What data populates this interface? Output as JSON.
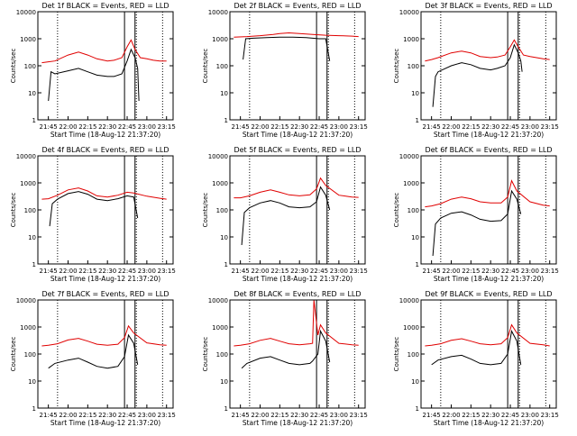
{
  "figure": {
    "series_colors": {
      "events": "#000000",
      "lld": "#e00000"
    }
  },
  "chart_data": [
    {
      "type": "line",
      "title": "Det 1f BLACK = Events, RED = LLD",
      "xlabel": "Start Time (18-Aug-12 21:37:20)",
      "ylabel": "Counts/sec",
      "y_scale": "log",
      "ylim": [
        1,
        10000
      ],
      "y_ticks": [
        "1",
        "10",
        "100",
        "1000",
        "10000"
      ],
      "xlim": [
        "21:37",
        "23:20"
      ],
      "x_ticks": [
        "21:45",
        "22:00",
        "22:15",
        "22:30",
        "22:45",
        "23:00",
        "23:15"
      ],
      "vertical_markers": {
        "dotted": [
          "21:52",
          "22:52",
          "23:12"
        ],
        "solid": [
          "22:43",
          "22:51"
        ]
      },
      "series": [
        {
          "key": "events",
          "x": [
            "21:45",
            "21:47",
            "21:50",
            "22:00",
            "22:08",
            "22:15",
            "22:22",
            "22:30",
            "22:35",
            "22:41",
            "22:45",
            "22:48",
            "22:51",
            "22:53",
            "22:54"
          ],
          "y": [
            5,
            60,
            50,
            65,
            80,
            60,
            45,
            40,
            40,
            50,
            150,
            400,
            200,
            80,
            5
          ]
        },
        {
          "key": "lld",
          "x": [
            "21:40",
            "21:45",
            "21:50",
            "22:00",
            "22:08",
            "22:15",
            "22:22",
            "22:30",
            "22:35",
            "22:41",
            "22:45",
            "22:48",
            "22:51",
            "22:55",
            "23:00",
            "23:05",
            "23:10",
            "23:15"
          ],
          "y": [
            130,
            140,
            150,
            250,
            320,
            250,
            180,
            150,
            160,
            200,
            500,
            900,
            400,
            200,
            180,
            160,
            150,
            150
          ]
        }
      ]
    },
    {
      "type": "line",
      "title": "Det 2f BLACK = Events, RED = LLD",
      "xlabel": "Start Time (18-Aug-12 21:37:20)",
      "ylabel": "Counts/sec",
      "y_scale": "log",
      "ylim": [
        1,
        10000
      ],
      "y_ticks": [
        "1",
        "10",
        "100",
        "1000",
        "10000"
      ],
      "xlim": [
        "21:37",
        "23:20"
      ],
      "x_ticks": [
        "21:45",
        "22:00",
        "22:15",
        "22:30",
        "22:45",
        "23:00",
        "23:15"
      ],
      "vertical_markers": {
        "dotted": [
          "21:52",
          "22:52",
          "23:12"
        ],
        "solid": [
          "22:43",
          "22:51"
        ]
      },
      "series": [
        {
          "key": "events",
          "x": [
            "21:47",
            "21:49",
            "21:55",
            "22:05",
            "22:15",
            "22:25",
            "22:35",
            "22:45",
            "22:50",
            "22:53"
          ],
          "y": [
            170,
            1000,
            1050,
            1100,
            1150,
            1150,
            1100,
            1000,
            1000,
            150
          ]
        },
        {
          "key": "lld",
          "x": [
            "21:40",
            "21:50",
            "22:00",
            "22:10",
            "22:15",
            "22:22",
            "22:30",
            "22:40",
            "22:50",
            "23:00",
            "23:10",
            "23:15"
          ],
          "y": [
            1150,
            1200,
            1300,
            1450,
            1550,
            1650,
            1550,
            1450,
            1350,
            1300,
            1250,
            1200
          ]
        }
      ]
    },
    {
      "type": "line",
      "title": "Det 3f BLACK = Events, RED = LLD",
      "xlabel": "Start Time (18-Aug-12 21:37:20)",
      "ylabel": "Counts/sec",
      "y_scale": "log",
      "ylim": [
        1,
        10000
      ],
      "y_ticks": [
        "1",
        "10",
        "100",
        "1000",
        "10000"
      ],
      "xlim": [
        "21:37",
        "23:20"
      ],
      "x_ticks": [
        "21:45",
        "22:00",
        "22:15",
        "22:30",
        "22:45",
        "23:00",
        "23:15"
      ],
      "vertical_markers": {
        "dotted": [
          "21:52",
          "22:52",
          "23:12"
        ],
        "solid": [
          "22:43",
          "22:51"
        ]
      },
      "series": [
        {
          "key": "events",
          "x": [
            "21:46",
            "21:48",
            "21:50",
            "22:00",
            "22:08",
            "22:15",
            "22:22",
            "22:30",
            "22:35",
            "22:41",
            "22:45",
            "22:48",
            "22:51",
            "22:53",
            "22:54"
          ],
          "y": [
            3,
            40,
            60,
            100,
            130,
            110,
            80,
            70,
            80,
            100,
            200,
            600,
            300,
            150,
            60
          ]
        },
        {
          "key": "lld",
          "x": [
            "21:40",
            "21:45",
            "21:50",
            "22:00",
            "22:08",
            "22:15",
            "22:22",
            "22:30",
            "22:35",
            "22:41",
            "22:45",
            "22:48",
            "22:51",
            "22:55",
            "23:00",
            "23:05",
            "23:10",
            "23:15"
          ],
          "y": [
            150,
            170,
            200,
            300,
            350,
            300,
            220,
            200,
            210,
            250,
            500,
            900,
            500,
            250,
            220,
            200,
            180,
            170
          ]
        }
      ]
    },
    {
      "type": "line",
      "title": "Det 4f BLACK = Events, RED = LLD",
      "xlabel": "Start Time (18-Aug-12 21:37:20)",
      "ylabel": "Counts/sec",
      "y_scale": "log",
      "ylim": [
        1,
        10000
      ],
      "y_ticks": [
        "1",
        "10",
        "100",
        "1000",
        "10000"
      ],
      "xlim": [
        "21:37",
        "23:20"
      ],
      "x_ticks": [
        "21:45",
        "22:00",
        "22:15",
        "22:30",
        "22:45",
        "23:00",
        "23:15"
      ],
      "vertical_markers": {
        "dotted": [
          "21:52",
          "22:52",
          "23:12"
        ],
        "solid": [
          "22:43",
          "22:51"
        ]
      },
      "series": [
        {
          "key": "events",
          "x": [
            "21:46",
            "21:48",
            "21:52",
            "22:00",
            "22:08",
            "22:15",
            "22:22",
            "22:30",
            "22:38",
            "22:45",
            "22:50",
            "22:53"
          ],
          "y": [
            25,
            170,
            250,
            400,
            480,
            380,
            250,
            220,
            260,
            330,
            300,
            50
          ]
        },
        {
          "key": "lld",
          "x": [
            "21:40",
            "21:45",
            "21:52",
            "22:00",
            "22:08",
            "22:15",
            "22:22",
            "22:30",
            "22:38",
            "22:45",
            "22:50",
            "23:00",
            "23:10",
            "23:15"
          ],
          "y": [
            250,
            260,
            350,
            550,
            650,
            500,
            330,
            300,
            350,
            450,
            420,
            320,
            270,
            250
          ]
        }
      ]
    },
    {
      "type": "line",
      "title": "Det 5f BLACK = Events, RED = LLD",
      "xlabel": "Start Time (18-Aug-12 21:37:20)",
      "ylabel": "Counts/sec",
      "y_scale": "log",
      "ylim": [
        1,
        10000
      ],
      "y_ticks": [
        "1",
        "10",
        "100",
        "1000",
        "10000"
      ],
      "xlim": [
        "21:37",
        "23:20"
      ],
      "x_ticks": [
        "21:45",
        "22:00",
        "22:15",
        "22:30",
        "22:45",
        "23:00",
        "23:15"
      ],
      "vertical_markers": {
        "dotted": [
          "21:52",
          "22:52",
          "23:12"
        ],
        "solid": [
          "22:43",
          "22:51"
        ]
      },
      "series": [
        {
          "key": "events",
          "x": [
            "21:46",
            "21:48",
            "21:52",
            "22:00",
            "22:08",
            "22:15",
            "22:22",
            "22:30",
            "22:38",
            "22:43",
            "22:46",
            "22:50",
            "22:53"
          ],
          "y": [
            5,
            80,
            120,
            180,
            220,
            180,
            130,
            120,
            130,
            200,
            700,
            350,
            100
          ]
        },
        {
          "key": "lld",
          "x": [
            "21:40",
            "21:45",
            "21:52",
            "22:00",
            "22:08",
            "22:15",
            "22:22",
            "22:30",
            "22:38",
            "22:43",
            "22:46",
            "22:50",
            "23:00",
            "23:10",
            "23:15"
          ],
          "y": [
            280,
            280,
            330,
            450,
            550,
            450,
            360,
            330,
            360,
            600,
            1500,
            800,
            350,
            300,
            290
          ]
        }
      ]
    },
    {
      "type": "line",
      "title": "Det 6f BLACK = Events, RED = LLD",
      "xlabel": "Start Time (18-Aug-12 21:37:20)",
      "ylabel": "Counts/sec",
      "y_scale": "log",
      "ylim": [
        1,
        10000
      ],
      "y_ticks": [
        "1",
        "10",
        "100",
        "1000",
        "10000"
      ],
      "xlim": [
        "21:37",
        "23:20"
      ],
      "x_ticks": [
        "21:45",
        "22:00",
        "22:15",
        "22:30",
        "22:45",
        "23:00",
        "23:15"
      ],
      "vertical_markers": {
        "dotted": [
          "21:52",
          "22:52",
          "23:12"
        ],
        "solid": [
          "22:43",
          "22:51"
        ]
      },
      "series": [
        {
          "key": "events",
          "x": [
            "21:46",
            "21:48",
            "21:52",
            "22:00",
            "22:08",
            "22:15",
            "22:22",
            "22:30",
            "22:38",
            "22:43",
            "22:46",
            "22:50",
            "22:53"
          ],
          "y": [
            2,
            30,
            50,
            75,
            85,
            65,
            45,
            38,
            40,
            70,
            500,
            250,
            70
          ]
        },
        {
          "key": "lld",
          "x": [
            "21:40",
            "21:45",
            "21:52",
            "22:00",
            "22:08",
            "22:15",
            "22:22",
            "22:30",
            "22:38",
            "22:43",
            "22:46",
            "22:50",
            "23:00",
            "23:10",
            "23:15"
          ],
          "y": [
            130,
            140,
            170,
            250,
            300,
            260,
            200,
            180,
            180,
            300,
            1200,
            500,
            200,
            150,
            140
          ]
        }
      ]
    },
    {
      "type": "line",
      "title": "Det 7f BLACK = Events, RED = LLD",
      "xlabel": "Start Time (18-Aug-12 21:37:20)",
      "ylabel": "Counts/sec",
      "y_scale": "log",
      "ylim": [
        1,
        10000
      ],
      "y_ticks": [
        "1",
        "10",
        "100",
        "1000",
        "10000"
      ],
      "xlim": [
        "21:37",
        "23:20"
      ],
      "x_ticks": [
        "21:45",
        "22:00",
        "22:15",
        "22:30",
        "22:45",
        "23:00",
        "23:15"
      ],
      "vertical_markers": {
        "dotted": [
          "21:52",
          "22:52",
          "23:12"
        ],
        "solid": [
          "22:43",
          "22:51"
        ]
      },
      "series": [
        {
          "key": "events",
          "x": [
            "21:45",
            "21:50",
            "22:00",
            "22:08",
            "22:15",
            "22:22",
            "22:30",
            "22:38",
            "22:43",
            "22:46",
            "22:50",
            "22:53"
          ],
          "y": [
            30,
            45,
            60,
            70,
            50,
            35,
            30,
            35,
            80,
            500,
            250,
            40
          ]
        },
        {
          "key": "lld",
          "x": [
            "21:40",
            "21:45",
            "21:52",
            "22:00",
            "22:08",
            "22:15",
            "22:22",
            "22:30",
            "22:38",
            "22:43",
            "22:46",
            "22:50",
            "23:00",
            "23:10",
            "23:15"
          ],
          "y": [
            200,
            210,
            240,
            330,
            380,
            300,
            230,
            210,
            230,
            400,
            1100,
            600,
            260,
            220,
            210
          ]
        }
      ]
    },
    {
      "type": "line",
      "title": "Det 8f BLACK = Events, RED = LLD",
      "xlabel": "Start Time (18-Aug-12 21:37:20)",
      "ylabel": "Counts/sec",
      "y_scale": "log",
      "ylim": [
        1,
        10000
      ],
      "y_ticks": [
        "1",
        "10",
        "100",
        "1000",
        "10000"
      ],
      "xlim": [
        "21:37",
        "23:20"
      ],
      "x_ticks": [
        "21:45",
        "22:00",
        "22:15",
        "22:30",
        "22:45",
        "23:00",
        "23:15"
      ],
      "vertical_markers": {
        "dotted": [
          "21:52",
          "22:52",
          "23:12"
        ],
        "solid": [
          "22:43",
          "22:51"
        ]
      },
      "series": [
        {
          "key": "events",
          "x": [
            "21:46",
            "21:50",
            "22:00",
            "22:08",
            "22:15",
            "22:22",
            "22:30",
            "22:38",
            "22:40",
            "22:44",
            "22:46",
            "22:50",
            "22:53"
          ],
          "y": [
            30,
            45,
            70,
            80,
            60,
            45,
            40,
            45,
            55,
            100,
            700,
            300,
            50
          ]
        },
        {
          "key": "lld",
          "x": [
            "21:40",
            "21:45",
            "21:52",
            "22:00",
            "22:08",
            "22:15",
            "22:22",
            "22:30",
            "22:38",
            "22:40",
            "22:41",
            "22:44",
            "22:46",
            "22:50",
            "23:00",
            "23:10",
            "23:15"
          ],
          "y": [
            200,
            210,
            240,
            320,
            380,
            300,
            240,
            220,
            240,
            250,
            10000,
            500,
            1200,
            600,
            250,
            220,
            210
          ]
        }
      ]
    },
    {
      "type": "line",
      "title": "Det 9f BLACK = Events, RED = LLD",
      "xlabel": "Start Time (18-Aug-12 21:37:20)",
      "ylabel": "Counts/sec",
      "y_scale": "log",
      "ylim": [
        1,
        10000
      ],
      "y_ticks": [
        "1",
        "10",
        "100",
        "1000",
        "10000"
      ],
      "xlim": [
        "21:37",
        "23:20"
      ],
      "x_ticks": [
        "21:45",
        "22:00",
        "22:15",
        "22:30",
        "22:45",
        "23:00",
        "23:15"
      ],
      "vertical_markers": {
        "dotted": [
          "21:52",
          "22:52",
          "23:12"
        ],
        "solid": [
          "22:43",
          "22:51"
        ]
      },
      "series": [
        {
          "key": "events",
          "x": [
            "21:45",
            "21:50",
            "22:00",
            "22:08",
            "22:15",
            "22:22",
            "22:30",
            "22:38",
            "22:43",
            "22:46",
            "22:50",
            "22:53"
          ],
          "y": [
            40,
            60,
            80,
            90,
            65,
            45,
            40,
            45,
            100,
            700,
            300,
            40
          ]
        },
        {
          "key": "lld",
          "x": [
            "21:40",
            "21:45",
            "21:52",
            "22:00",
            "22:08",
            "22:15",
            "22:22",
            "22:30",
            "22:38",
            "22:43",
            "22:46",
            "22:50",
            "23:00",
            "23:10",
            "23:15"
          ],
          "y": [
            200,
            210,
            240,
            320,
            370,
            300,
            240,
            220,
            240,
            400,
            1200,
            600,
            250,
            220,
            200
          ]
        }
      ]
    }
  ]
}
